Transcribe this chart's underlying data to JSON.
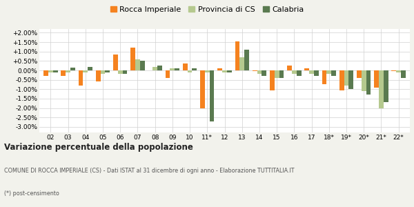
{
  "categories": [
    "02",
    "03",
    "04",
    "05",
    "06",
    "07",
    "08",
    "09",
    "10",
    "11*",
    "12",
    "13",
    "14",
    "15",
    "16",
    "17",
    "18*",
    "19*",
    "20*",
    "21*",
    "22*"
  ],
  "rocca": [
    -0.003,
    -0.003,
    -0.008,
    -0.006,
    0.0085,
    0.012,
    0.0,
    -0.004,
    0.0035,
    -0.02,
    0.001,
    0.0155,
    -0.0005,
    -0.0105,
    0.0025,
    0.001,
    -0.0075,
    -0.0105,
    -0.004,
    -0.009,
    -0.0005
  ],
  "provincia": [
    -0.001,
    -0.001,
    -0.001,
    -0.002,
    -0.002,
    0.006,
    0.002,
    0.001,
    -0.001,
    -0.001,
    -0.001,
    0.007,
    -0.002,
    -0.004,
    -0.002,
    -0.002,
    -0.002,
    -0.008,
    -0.011,
    -0.02,
    -0.001
  ],
  "calabria": [
    -0.001,
    0.0015,
    0.002,
    -0.001,
    -0.002,
    0.005,
    0.0025,
    0.001,
    0.001,
    -0.027,
    -0.001,
    0.011,
    -0.003,
    -0.004,
    -0.003,
    -0.003,
    -0.003,
    -0.01,
    -0.013,
    -0.017,
    -0.004
  ],
  "color_rocca": "#f5821f",
  "color_provincia": "#b5c98e",
  "color_calabria": "#5a7a50",
  "title": "Variazione percentuale della popolazione",
  "subtitle": "COMUNE DI ROCCA IMPERIALE (CS) - Dati ISTAT al 31 dicembre di ogni anno - Elaborazione TUTTITALIA.IT",
  "footnote": "(*) post-censimento",
  "legend_rocca": "Rocca Imperiale",
  "legend_provincia": "Provincia di CS",
  "legend_calabria": "Calabria",
  "ylim": [
    -0.033,
    0.022
  ],
  "yticks": [
    -0.03,
    -0.025,
    -0.02,
    -0.015,
    -0.01,
    -0.005,
    0.0,
    0.005,
    0.01,
    0.015,
    0.02
  ],
  "ytick_labels": [
    "-3.00%",
    "-2.50%",
    "-2.00%",
    "-1.50%",
    "-1.00%",
    "-0.50%",
    "0.00%",
    "+0.50%",
    "+1.00%",
    "+1.50%",
    "+2.00%"
  ],
  "bg_color": "#f2f2ec",
  "plot_bg": "#ffffff"
}
